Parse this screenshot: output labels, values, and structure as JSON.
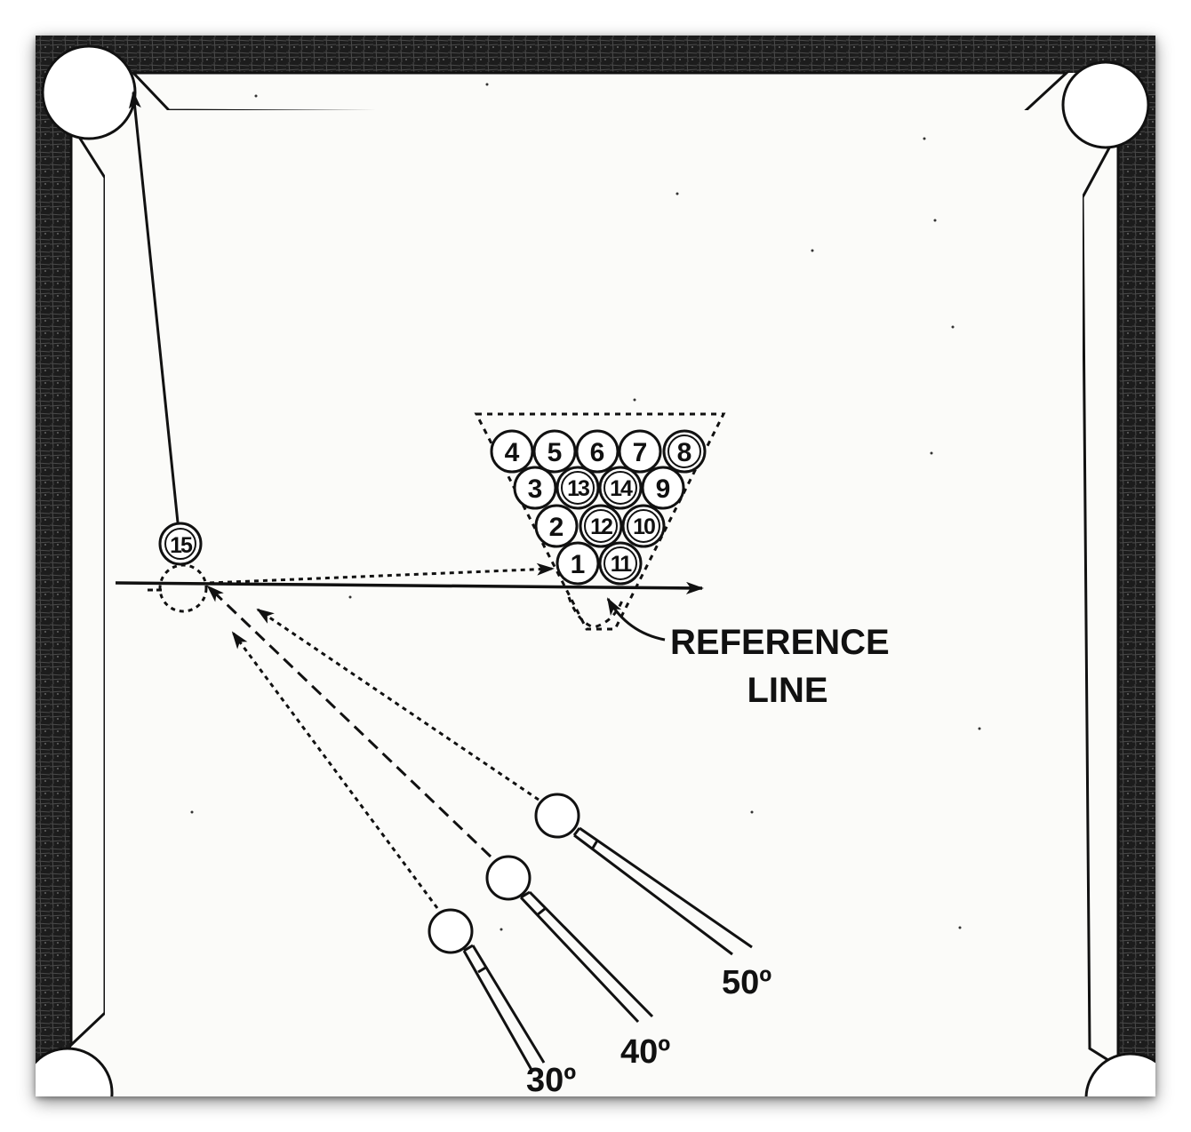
{
  "reference_label": {
    "line1": "REFERENCE",
    "line2": "LINE"
  },
  "rack_balls": [
    {
      "number": "4"
    },
    {
      "number": "5"
    },
    {
      "number": "6"
    },
    {
      "number": "7"
    },
    {
      "number": "8"
    },
    {
      "number": "3"
    },
    {
      "number": "13"
    },
    {
      "number": "14"
    },
    {
      "number": "9"
    },
    {
      "number": "2"
    },
    {
      "number": "12"
    },
    {
      "number": "10"
    },
    {
      "number": "1"
    },
    {
      "number": "11"
    }
  ],
  "object_ball": {
    "number": "15"
  },
  "angles": [
    {
      "label": "30º"
    },
    {
      "label": "40º"
    },
    {
      "label": "50º"
    }
  ],
  "colors": {
    "ink": "#111111",
    "felt": "#fbfbf9",
    "rail": "#1a1a1a"
  }
}
